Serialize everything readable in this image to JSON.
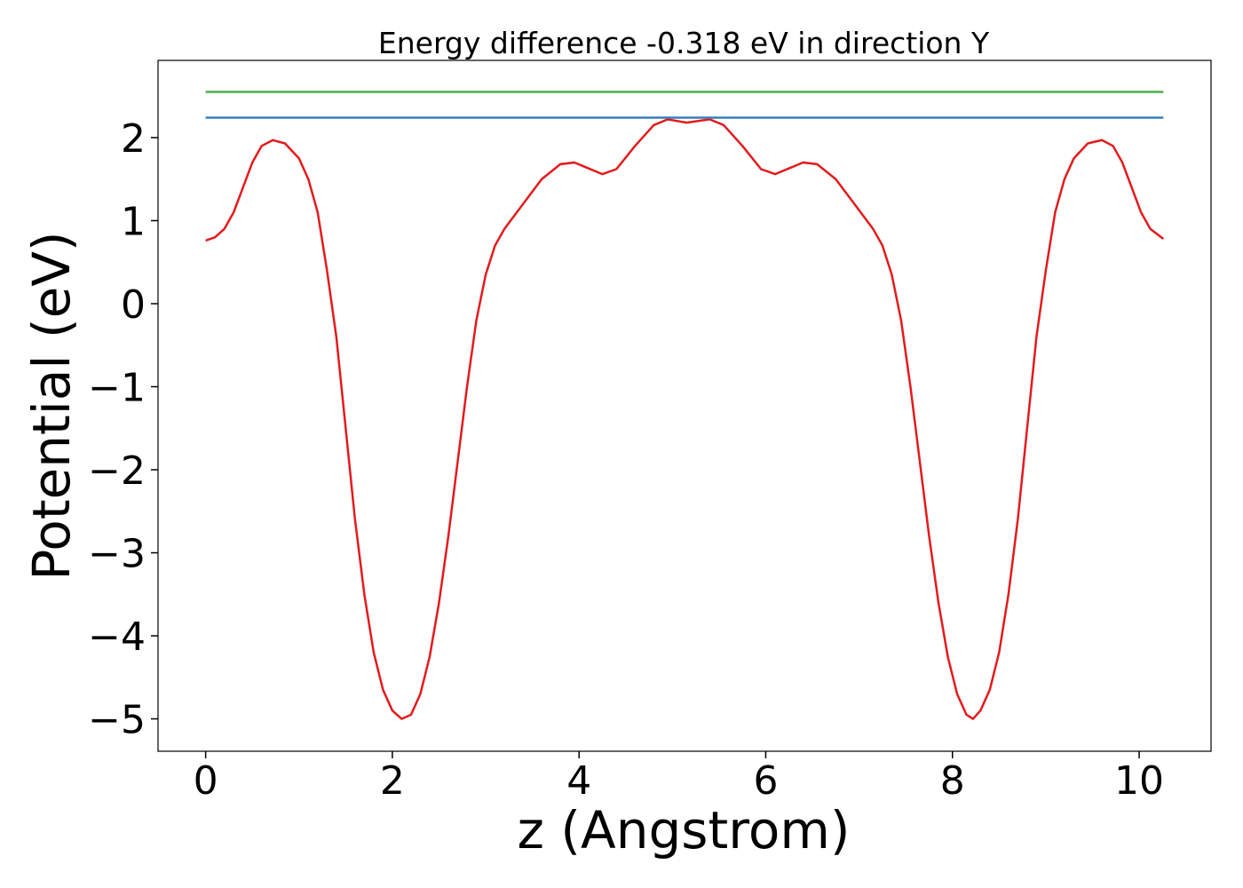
{
  "chart_data": {
    "type": "line",
    "title": "Energy difference -0.318 eV in direction Y",
    "xlabel": "z (Angstrom)",
    "ylabel": "Potential (eV)",
    "xlim": [
      -0.51,
      10.77
    ],
    "ylim": [
      -5.39,
      2.93
    ],
    "xticks": [
      0,
      2,
      4,
      6,
      8,
      10
    ],
    "yticks": [
      {
        "value": -5,
        "label": "−5"
      },
      {
        "value": -4,
        "label": "−4"
      },
      {
        "value": -3,
        "label": "−3"
      },
      {
        "value": -2,
        "label": "−2"
      },
      {
        "value": -1,
        "label": "−1"
      },
      0,
      1,
      2
    ],
    "series": [
      {
        "color": "#e41a1c",
        "x": [
          0,
          0.1,
          0.2,
          0.3,
          0.4,
          0.5,
          0.6,
          0.72,
          0.85,
          1.0,
          1.1,
          1.2,
          1.3,
          1.4,
          1.5,
          1.6,
          1.7,
          1.8,
          1.9,
          2.0,
          2.1,
          2.2,
          2.3,
          2.4,
          2.5,
          2.6,
          2.7,
          2.8,
          2.9,
          3.0,
          3.1,
          3.2,
          3.4,
          3.6,
          3.8,
          3.95,
          4.1,
          4.25,
          4.4,
          4.6,
          4.8,
          4.95,
          5.15,
          5.4,
          5.55,
          5.75,
          5.95,
          6.1,
          6.25,
          6.4,
          6.55,
          6.75,
          6.95,
          7.15,
          7.25,
          7.35,
          7.45,
          7.55,
          7.65,
          7.75,
          7.85,
          7.95,
          8.05,
          8.15,
          8.22,
          8.3,
          8.4,
          8.5,
          8.6,
          8.7,
          8.8,
          8.9,
          9.0,
          9.1,
          9.2,
          9.3,
          9.45,
          9.6,
          9.72,
          9.82,
          9.92,
          10.02,
          10.12,
          10.26
        ],
        "values": [
          0.76,
          0.8,
          0.9,
          1.1,
          1.4,
          1.7,
          1.9,
          1.97,
          1.93,
          1.75,
          1.5,
          1.1,
          0.4,
          -0.4,
          -1.5,
          -2.6,
          -3.5,
          -4.2,
          -4.65,
          -4.9,
          -5.0,
          -4.95,
          -4.7,
          -4.25,
          -3.6,
          -2.8,
          -1.9,
          -1.0,
          -0.2,
          0.35,
          0.7,
          0.9,
          1.2,
          1.5,
          1.68,
          1.7,
          1.63,
          1.56,
          1.62,
          1.9,
          2.15,
          2.22,
          2.18,
          2.22,
          2.15,
          1.9,
          1.62,
          1.56,
          1.63,
          1.7,
          1.68,
          1.5,
          1.2,
          0.9,
          0.7,
          0.35,
          -0.2,
          -1.0,
          -1.9,
          -2.8,
          -3.6,
          -4.25,
          -4.7,
          -4.95,
          -5.0,
          -4.9,
          -4.65,
          -4.2,
          -3.5,
          -2.6,
          -1.5,
          -0.4,
          0.4,
          1.1,
          1.5,
          1.75,
          1.93,
          1.97,
          1.9,
          1.7,
          1.4,
          1.1,
          0.9,
          0.78
        ]
      },
      {
        "color": "#4daf4a",
        "x": [
          0,
          10.26
        ],
        "values": [
          2.55,
          2.55
        ]
      },
      {
        "color": "#377eb8",
        "x": [
          0,
          10.26
        ],
        "values": [
          2.24,
          2.24
        ]
      }
    ]
  }
}
